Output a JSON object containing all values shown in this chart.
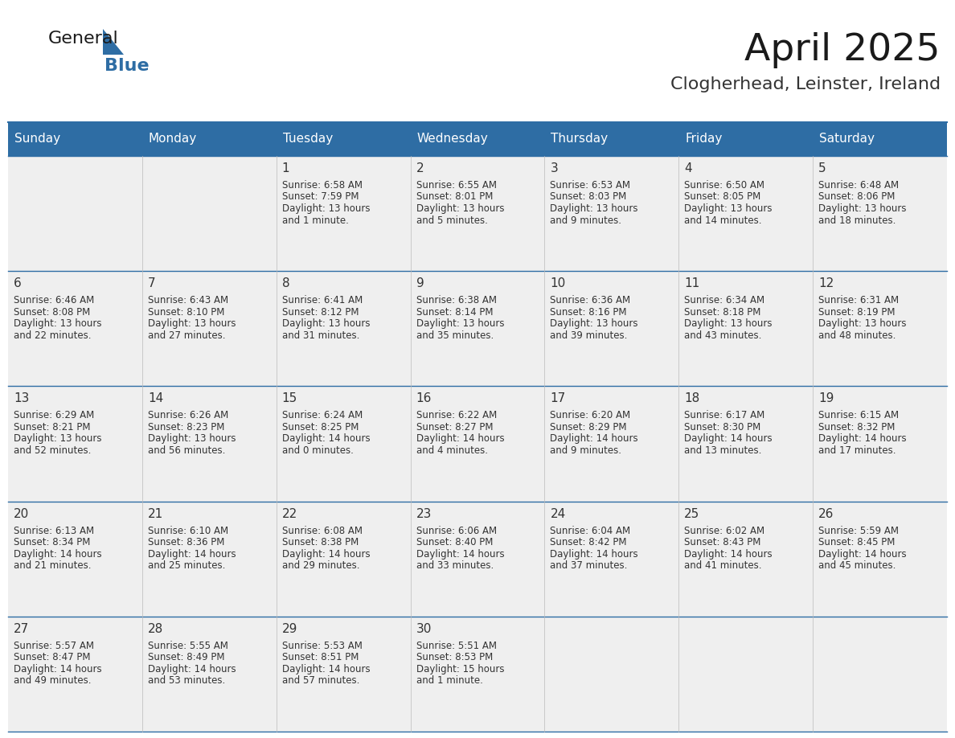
{
  "title": "April 2025",
  "subtitle": "Clogherhead, Leinster, Ireland",
  "header_bg": "#2E6DA4",
  "header_text_color": "#FFFFFF",
  "cell_bg": "#EFEFEF",
  "text_color": "#333333",
  "line_color": "#2E6DA4",
  "day_headers": [
    "Sunday",
    "Monday",
    "Tuesday",
    "Wednesday",
    "Thursday",
    "Friday",
    "Saturday"
  ],
  "weeks": [
    [
      {
        "day": "",
        "sunrise": "",
        "sunset": "",
        "daylight": ""
      },
      {
        "day": "",
        "sunrise": "",
        "sunset": "",
        "daylight": ""
      },
      {
        "day": "1",
        "sunrise": "6:58 AM",
        "sunset": "7:59 PM",
        "daylight": "13 hours\nand 1 minute."
      },
      {
        "day": "2",
        "sunrise": "6:55 AM",
        "sunset": "8:01 PM",
        "daylight": "13 hours\nand 5 minutes."
      },
      {
        "day": "3",
        "sunrise": "6:53 AM",
        "sunset": "8:03 PM",
        "daylight": "13 hours\nand 9 minutes."
      },
      {
        "day": "4",
        "sunrise": "6:50 AM",
        "sunset": "8:05 PM",
        "daylight": "13 hours\nand 14 minutes."
      },
      {
        "day": "5",
        "sunrise": "6:48 AM",
        "sunset": "8:06 PM",
        "daylight": "13 hours\nand 18 minutes."
      }
    ],
    [
      {
        "day": "6",
        "sunrise": "6:46 AM",
        "sunset": "8:08 PM",
        "daylight": "13 hours\nand 22 minutes."
      },
      {
        "day": "7",
        "sunrise": "6:43 AM",
        "sunset": "8:10 PM",
        "daylight": "13 hours\nand 27 minutes."
      },
      {
        "day": "8",
        "sunrise": "6:41 AM",
        "sunset": "8:12 PM",
        "daylight": "13 hours\nand 31 minutes."
      },
      {
        "day": "9",
        "sunrise": "6:38 AM",
        "sunset": "8:14 PM",
        "daylight": "13 hours\nand 35 minutes."
      },
      {
        "day": "10",
        "sunrise": "6:36 AM",
        "sunset": "8:16 PM",
        "daylight": "13 hours\nand 39 minutes."
      },
      {
        "day": "11",
        "sunrise": "6:34 AM",
        "sunset": "8:18 PM",
        "daylight": "13 hours\nand 43 minutes."
      },
      {
        "day": "12",
        "sunrise": "6:31 AM",
        "sunset": "8:19 PM",
        "daylight": "13 hours\nand 48 minutes."
      }
    ],
    [
      {
        "day": "13",
        "sunrise": "6:29 AM",
        "sunset": "8:21 PM",
        "daylight": "13 hours\nand 52 minutes."
      },
      {
        "day": "14",
        "sunrise": "6:26 AM",
        "sunset": "8:23 PM",
        "daylight": "13 hours\nand 56 minutes."
      },
      {
        "day": "15",
        "sunrise": "6:24 AM",
        "sunset": "8:25 PM",
        "daylight": "14 hours\nand 0 minutes."
      },
      {
        "day": "16",
        "sunrise": "6:22 AM",
        "sunset": "8:27 PM",
        "daylight": "14 hours\nand 4 minutes."
      },
      {
        "day": "17",
        "sunrise": "6:20 AM",
        "sunset": "8:29 PM",
        "daylight": "14 hours\nand 9 minutes."
      },
      {
        "day": "18",
        "sunrise": "6:17 AM",
        "sunset": "8:30 PM",
        "daylight": "14 hours\nand 13 minutes."
      },
      {
        "day": "19",
        "sunrise": "6:15 AM",
        "sunset": "8:32 PM",
        "daylight": "14 hours\nand 17 minutes."
      }
    ],
    [
      {
        "day": "20",
        "sunrise": "6:13 AM",
        "sunset": "8:34 PM",
        "daylight": "14 hours\nand 21 minutes."
      },
      {
        "day": "21",
        "sunrise": "6:10 AM",
        "sunset": "8:36 PM",
        "daylight": "14 hours\nand 25 minutes."
      },
      {
        "day": "22",
        "sunrise": "6:08 AM",
        "sunset": "8:38 PM",
        "daylight": "14 hours\nand 29 minutes."
      },
      {
        "day": "23",
        "sunrise": "6:06 AM",
        "sunset": "8:40 PM",
        "daylight": "14 hours\nand 33 minutes."
      },
      {
        "day": "24",
        "sunrise": "6:04 AM",
        "sunset": "8:42 PM",
        "daylight": "14 hours\nand 37 minutes."
      },
      {
        "day": "25",
        "sunrise": "6:02 AM",
        "sunset": "8:43 PM",
        "daylight": "14 hours\nand 41 minutes."
      },
      {
        "day": "26",
        "sunrise": "5:59 AM",
        "sunset": "8:45 PM",
        "daylight": "14 hours\nand 45 minutes."
      }
    ],
    [
      {
        "day": "27",
        "sunrise": "5:57 AM",
        "sunset": "8:47 PM",
        "daylight": "14 hours\nand 49 minutes."
      },
      {
        "day": "28",
        "sunrise": "5:55 AM",
        "sunset": "8:49 PM",
        "daylight": "14 hours\nand 53 minutes."
      },
      {
        "day": "29",
        "sunrise": "5:53 AM",
        "sunset": "8:51 PM",
        "daylight": "14 hours\nand 57 minutes."
      },
      {
        "day": "30",
        "sunrise": "5:51 AM",
        "sunset": "8:53 PM",
        "daylight": "15 hours\nand 1 minute."
      },
      {
        "day": "",
        "sunrise": "",
        "sunset": "",
        "daylight": ""
      },
      {
        "day": "",
        "sunrise": "",
        "sunset": "",
        "daylight": ""
      },
      {
        "day": "",
        "sunrise": "",
        "sunset": "",
        "daylight": ""
      }
    ]
  ]
}
